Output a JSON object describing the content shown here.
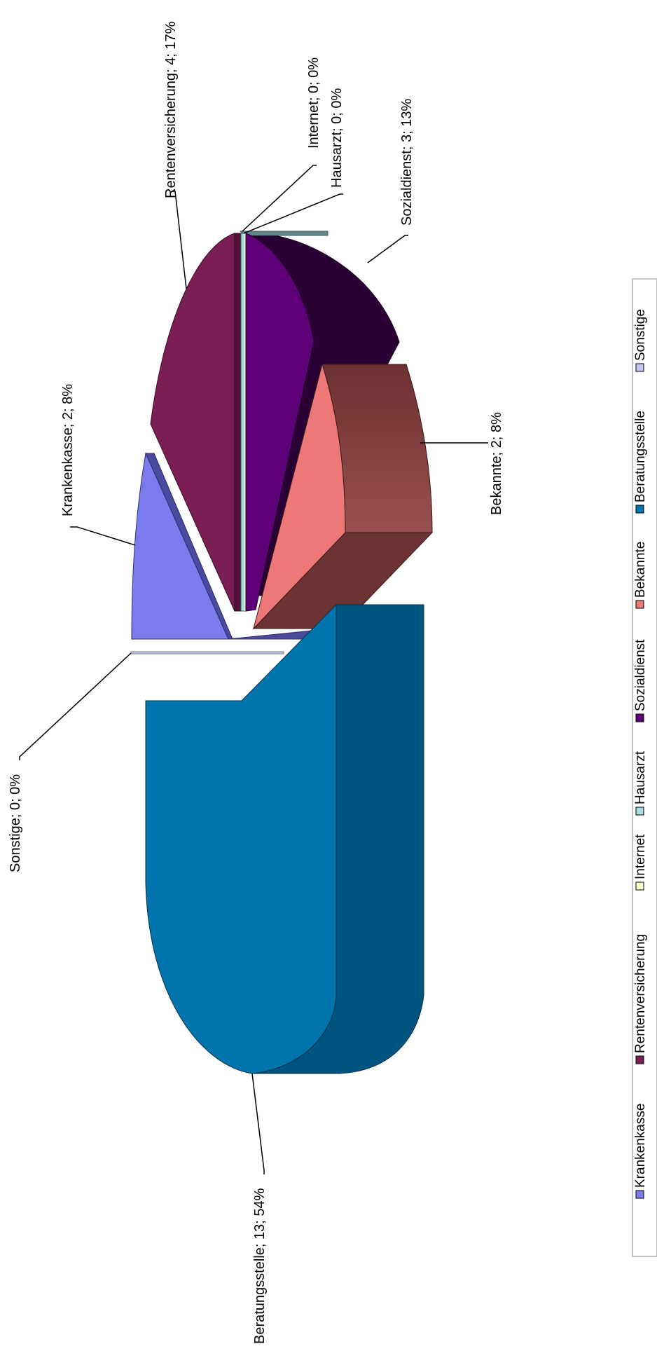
{
  "chart_data": {
    "type": "pie",
    "title": "",
    "rotation": "rotated 90 degrees counter-clockwise",
    "three_d": true,
    "legend_position": "right",
    "slices": [
      {
        "name": "Krankenkasse",
        "value": 2,
        "percent": "8%",
        "label": "Krankenkasse; 2; 8%",
        "color": "#7B7BEE",
        "side": "#4A4A9E",
        "exploded": true
      },
      {
        "name": "Rentenversicherung",
        "value": 4,
        "percent": "17%",
        "label": "Rentenversicherung; 4; 17%",
        "color": "#7A1E55",
        "side": "#4E1236",
        "exploded": false
      },
      {
        "name": "Internet",
        "value": 0,
        "percent": "0%",
        "label": "Internet; 0; 0%",
        "color": "#FFFFC8",
        "side": "#CCCC99",
        "exploded": false
      },
      {
        "name": "Hausarzt",
        "value": 0,
        "percent": "0%",
        "label": "Hausarzt; 0; 0%",
        "color": "#A8DDE0",
        "side": "#5E8A8C",
        "exploded": false
      },
      {
        "name": "Sozialdienst",
        "value": 3,
        "percent": "13%",
        "label": "Sozialdienst; 3; 13%",
        "color": "#5E0078",
        "side": "#2A0034",
        "exploded": false
      },
      {
        "name": "Bekannte",
        "value": 2,
        "percent": "8%",
        "label": "Bekannte; 2; 8%",
        "color": "#EE7777",
        "side": "#6B3333",
        "exploded": true
      },
      {
        "name": "Beratungsstelle",
        "value": 13,
        "percent": "54%",
        "label": "Beratungsstelle; 13; 54%",
        "color": "#0074AD",
        "side": "#005580",
        "exploded": true
      },
      {
        "name": "Sonstige",
        "value": 0,
        "percent": "0%",
        "label": "Sonstige; 0; 0%",
        "color": "#C0C8F0",
        "side": "#8F96BC",
        "exploded": false
      }
    ]
  }
}
